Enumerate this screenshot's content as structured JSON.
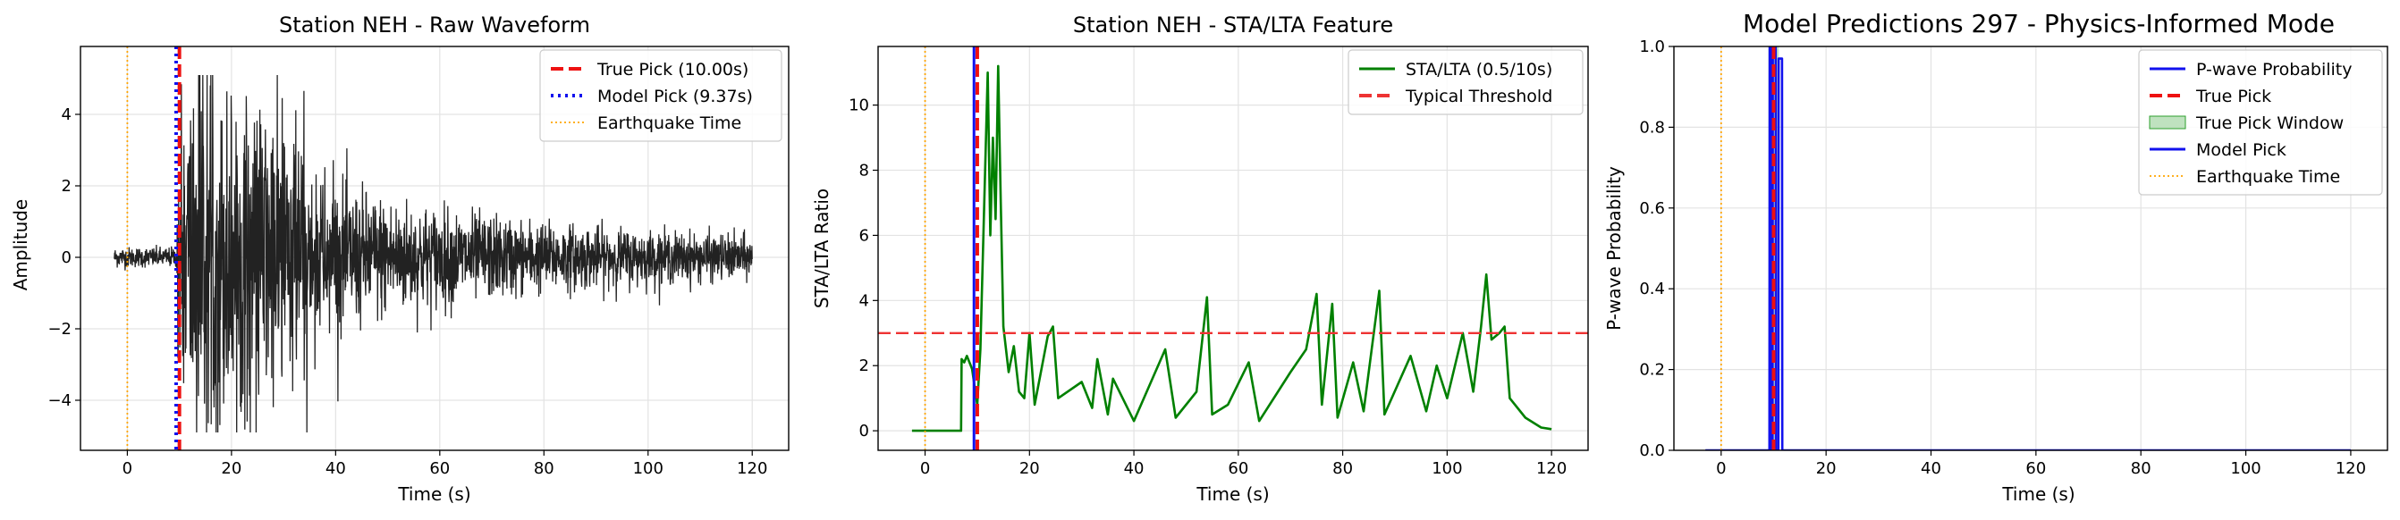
{
  "chart_data": [
    {
      "type": "line",
      "title": "Station NEH - Raw Waveform",
      "xlabel": "Time (s)",
      "ylabel": "Amplitude",
      "xlim": [
        -9,
        127
      ],
      "ylim": [
        -5.4,
        5.9
      ],
      "xticks": [
        0,
        20,
        40,
        60,
        80,
        100,
        120
      ],
      "xtick_labels": [
        "0",
        "20",
        "40",
        "60",
        "80",
        "100",
        "120"
      ],
      "yticks": [
        -4,
        -2,
        0,
        2,
        4
      ],
      "ytick_labels": [
        "−4",
        "−2",
        "0",
        "2",
        "4"
      ],
      "grid": true,
      "legend_position": "top-right",
      "waveform": {
        "x_start": -2.5,
        "x_end": 120,
        "color": "#222222",
        "onset": 9.5
      },
      "vlines": [
        {
          "name": "True Pick (10.00s)",
          "x": 10.0,
          "color": "#ee1111",
          "style": "dashed"
        },
        {
          "name": "Model Pick (9.37s)",
          "x": 9.37,
          "color": "#1111ee",
          "style": "dotted"
        },
        {
          "name": "Earthquake Time",
          "x": 0,
          "color": "#ffa500",
          "style": "dotted-thin"
        }
      ],
      "legend": [
        {
          "label": "True Pick (10.00s)",
          "color": "#ee1111",
          "style": "dashed"
        },
        {
          "label": "Model Pick (9.37s)",
          "color": "#1111ee",
          "style": "dotted"
        },
        {
          "label": "Earthquake Time",
          "color": "#ffa500",
          "style": "dotted-thin"
        }
      ]
    },
    {
      "type": "line",
      "title": "Station NEH - STA/LTA Feature",
      "xlabel": "Time (s)",
      "ylabel": "STA/LTA Ratio",
      "xlim": [
        -9,
        127
      ],
      "ylim": [
        -0.6,
        11.8
      ],
      "xticks": [
        0,
        20,
        40,
        60,
        80,
        100,
        120
      ],
      "xtick_labels": [
        "0",
        "20",
        "40",
        "60",
        "80",
        "100",
        "120"
      ],
      "yticks": [
        0,
        2,
        4,
        6,
        8,
        10
      ],
      "ytick_labels": [
        "0",
        "2",
        "4",
        "6",
        "8",
        "10"
      ],
      "grid": true,
      "legend_position": "top-right",
      "series": [
        {
          "name": "STA/LTA (0.5/10s)",
          "color": "#008000",
          "key_points": [
            [
              -2.5,
              0
            ],
            [
              6.9,
              0
            ],
            [
              7.0,
              2.2
            ],
            [
              7.5,
              2.1
            ],
            [
              8.0,
              2.3
            ],
            [
              9.0,
              1.9
            ],
            [
              10.0,
              0.8
            ],
            [
              10.6,
              2.5
            ],
            [
              11.5,
              8.0
            ],
            [
              12.0,
              11.0
            ],
            [
              12.5,
              6.0
            ],
            [
              13.0,
              9.0
            ],
            [
              13.5,
              6.5
            ],
            [
              14.0,
              11.2
            ],
            [
              14.5,
              7.0
            ],
            [
              15.0,
              3.2
            ],
            [
              16.0,
              1.8
            ],
            [
              17.0,
              2.6
            ],
            [
              18.0,
              1.2
            ],
            [
              19.0,
              1.0
            ],
            [
              20.0,
              3.0
            ],
            [
              21.0,
              0.8
            ],
            [
              23.5,
              2.9
            ],
            [
              24.5,
              3.2
            ],
            [
              25.5,
              1.0
            ],
            [
              30.0,
              1.5
            ],
            [
              32.0,
              0.7
            ],
            [
              33.0,
              2.2
            ],
            [
              35.0,
              0.5
            ],
            [
              36.0,
              1.6
            ],
            [
              40.0,
              0.3
            ],
            [
              46.0,
              2.5
            ],
            [
              48.0,
              0.4
            ],
            [
              52.0,
              1.2
            ],
            [
              54.0,
              4.1
            ],
            [
              55.0,
              0.5
            ],
            [
              58.0,
              0.8
            ],
            [
              62.0,
              2.1
            ],
            [
              64.0,
              0.3
            ],
            [
              70.0,
              1.8
            ],
            [
              73.0,
              2.5
            ],
            [
              75.0,
              4.2
            ],
            [
              76.0,
              0.8
            ],
            [
              78.0,
              3.9
            ],
            [
              79.0,
              0.4
            ],
            [
              82.0,
              2.1
            ],
            [
              84.0,
              0.6
            ],
            [
              87.0,
              4.3
            ],
            [
              88.0,
              0.5
            ],
            [
              93.0,
              2.3
            ],
            [
              96.0,
              0.6
            ],
            [
              98.0,
              2.0
            ],
            [
              100.0,
              1.0
            ],
            [
              103.0,
              3.0
            ],
            [
              105.0,
              1.2
            ],
            [
              106.5,
              3.2
            ],
            [
              107.5,
              4.8
            ],
            [
              108.5,
              2.8
            ],
            [
              110.0,
              3.0
            ],
            [
              111.0,
              3.2
            ],
            [
              112.0,
              1.0
            ],
            [
              115.0,
              0.4
            ],
            [
              118.0,
              0.1
            ],
            [
              120.0,
              0.05
            ]
          ]
        }
      ],
      "hlines": [
        {
          "name": "Typical Threshold",
          "y": 3.0,
          "color": "#ee3333",
          "style": "dashed"
        }
      ],
      "vlines": [
        {
          "name": "True Pick",
          "x": 10.0,
          "color": "#ee1111",
          "style": "dashed"
        },
        {
          "name": "Model Pick",
          "x": 9.37,
          "color": "#1111ee",
          "style": "solid"
        },
        {
          "name": "Earthquake Time",
          "x": 0,
          "color": "#ffa500",
          "style": "dotted-thin"
        }
      ],
      "legend": [
        {
          "label": "STA/LTA (0.5/10s)",
          "color": "#008000",
          "style": "solid"
        },
        {
          "label": "Typical Threshold",
          "color": "#ee3333",
          "style": "dashed"
        }
      ]
    },
    {
      "type": "line",
      "title": "Model Predictions 297 - Physics-Informed Mode",
      "xlabel": "Time (s)",
      "ylabel": "P-wave Probability",
      "xlim": [
        -9,
        127
      ],
      "ylim": [
        0,
        1.0
      ],
      "xticks": [
        0,
        20,
        40,
        60,
        80,
        100,
        120
      ],
      "xtick_labels": [
        "0",
        "20",
        "40",
        "60",
        "80",
        "100",
        "120"
      ],
      "yticks": [
        0,
        0.2,
        0.4,
        0.6,
        0.8,
        1.0
      ],
      "ytick_labels": [
        "0.0",
        "0.2",
        "0.4",
        "0.6",
        "0.8",
        "1.0"
      ],
      "grid": true,
      "legend_position": "top-right",
      "series": [
        {
          "name": "P-wave Probability",
          "color": "#1111ee",
          "key_points": [
            [
              -3,
              0
            ],
            [
              9.2,
              0
            ],
            [
              9.25,
              1.0
            ],
            [
              9.55,
              1.0
            ],
            [
              9.6,
              0
            ],
            [
              9.8,
              0
            ],
            [
              9.85,
              1.0
            ],
            [
              10.4,
              1.0
            ],
            [
              10.45,
              0
            ],
            [
              10.9,
              0
            ],
            [
              10.95,
              0.97
            ],
            [
              11.6,
              0.97
            ],
            [
              11.65,
              0
            ],
            [
              120,
              0
            ]
          ]
        }
      ],
      "shaded_window": {
        "name": "True Pick Window",
        "x0": 9.0,
        "x1": 11.0,
        "color": "#2ca02c"
      },
      "vlines": [
        {
          "name": "True Pick",
          "x": 10.0,
          "color": "#ee1111",
          "style": "dashed"
        },
        {
          "name": "Model Pick",
          "x": 9.37,
          "color": "#1111ee",
          "style": "solid"
        },
        {
          "name": "Earthquake Time",
          "x": 0,
          "color": "#ffa500",
          "style": "dotted-thin"
        }
      ],
      "legend": [
        {
          "label": "P-wave Probability",
          "color": "#1111ee",
          "style": "solid"
        },
        {
          "label": "True Pick",
          "color": "#ee1111",
          "style": "dashed"
        },
        {
          "label": "True Pick Window",
          "color": "#2ca02c",
          "style": "patch"
        },
        {
          "label": "Model Pick",
          "color": "#1111ee",
          "style": "solid"
        },
        {
          "label": "Earthquake Time",
          "color": "#ffa500",
          "style": "dotted-thin"
        }
      ]
    }
  ]
}
